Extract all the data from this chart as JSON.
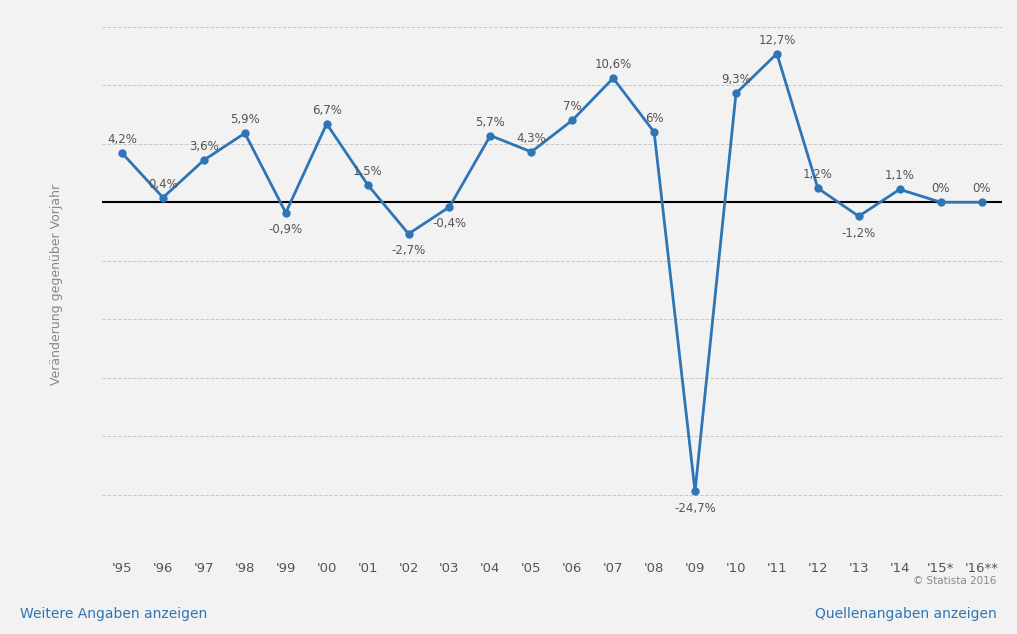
{
  "years": [
    "'95",
    "'96",
    "'97",
    "'98",
    "'99",
    "'00",
    "'01",
    "'02",
    "'03",
    "'04",
    "'05",
    "'06",
    "'07",
    "'08",
    "'09",
    "'10",
    "'11",
    "'12",
    "'13",
    "'14",
    "'15*",
    "'16**"
  ],
  "values": [
    4.2,
    0.4,
    3.6,
    5.9,
    -0.9,
    6.7,
    1.5,
    -2.7,
    -0.4,
    5.7,
    4.3,
    7.0,
    10.6,
    6.0,
    -24.7,
    9.3,
    12.7,
    1.2,
    -1.2,
    1.1,
    0.0,
    0.0
  ],
  "labels": [
    "4,2%",
    "0,4%",
    "3,6%",
    "5,9%",
    "-0,9%",
    "6,7%",
    "1,5%",
    "-2,7%",
    "-0,4%",
    "5,7%",
    "4,3%",
    "7%",
    "10,6%",
    "6%",
    "-24,7%",
    "9,3%",
    "12,7%",
    "1,2%",
    "-1,2%",
    "1,1%",
    "0%",
    "0%"
  ],
  "label_above": [
    true,
    true,
    true,
    true,
    false,
    true,
    true,
    false,
    false,
    true,
    true,
    true,
    true,
    true,
    false,
    true,
    true,
    true,
    false,
    true,
    true,
    true
  ],
  "line_color": "#2e75b6",
  "marker_color": "#2e75b6",
  "zero_line_color": "#000000",
  "grid_color": "#c8c8c8",
  "bg_color": "#f2f2f2",
  "ylabel": "Veränderung gegenüber Vorjahr",
  "bottom_left_text": "Weitere Angaben anzeigen",
  "bottom_right_text": "Quellenangaben anzeigen",
  "bottom_link_color": "#2e75b6",
  "copyright_text": "© Statista 2016",
  "ylim_min": -30,
  "ylim_max": 16
}
